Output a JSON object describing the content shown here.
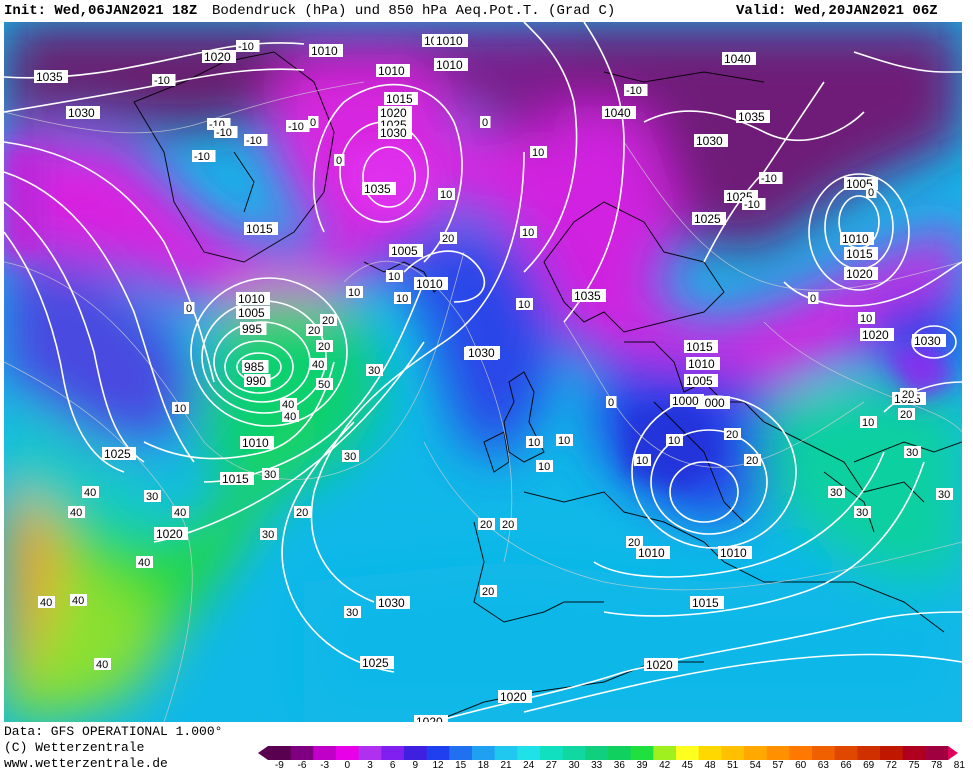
{
  "header": {
    "init_label": "Init: Wed,06JAN2021 18Z",
    "product_title": "Bodendruck (hPa) und 850 hPa Aeq.Pot.T. (Grad C)",
    "valid_label": "Valid: Wed,20JAN2021 06Z"
  },
  "footer": {
    "data_source": "Data: GFS OPERATIONAL 1.000°",
    "copyright": "(C) Wetterzentrale",
    "website": "www.wetterzentrale.de"
  },
  "colorbar": {
    "tick_labels": [
      "-9",
      "-6",
      "-3",
      "0",
      "3",
      "6",
      "9",
      "12",
      "15",
      "18",
      "21",
      "24",
      "27",
      "30",
      "33",
      "36",
      "39",
      "42",
      "45",
      "48",
      "51",
      "54",
      "57",
      "60",
      "63",
      "66",
      "69",
      "72",
      "75",
      "78",
      "81"
    ],
    "colors": [
      "#5a0050",
      "#7e0080",
      "#c000c8",
      "#e800e8",
      "#b030f0",
      "#8020f0",
      "#4020e0",
      "#2040f0",
      "#2070f0",
      "#20a0f0",
      "#20c8f0",
      "#20e0e8",
      "#10e0c0",
      "#10d8a0",
      "#10d080",
      "#10d060",
      "#20e040",
      "#a0f020",
      "#ffff20",
      "#ffd800",
      "#ffc000",
      "#ffa800",
      "#ff9000",
      "#ff7800",
      "#f06000",
      "#e04800",
      "#d03000",
      "#c01800",
      "#b00020",
      "#a00040"
    ]
  },
  "map": {
    "pressure_labels": [
      {
        "t": "1035"
      },
      {
        "t": "1030"
      },
      {
        "t": "1020"
      },
      {
        "t": "1010"
      },
      {
        "t": "1010"
      },
      {
        "t": "1010"
      },
      {
        "t": "1010"
      },
      {
        "t": "1010"
      },
      {
        "t": "1015"
      },
      {
        "t": "1020"
      },
      {
        "t": "1025"
      },
      {
        "t": "1030"
      },
      {
        "t": "1035"
      },
      {
        "t": "1040"
      },
      {
        "t": "1040"
      },
      {
        "t": "1035"
      },
      {
        "t": "1030"
      },
      {
        "t": "1025"
      },
      {
        "t": "1025"
      },
      {
        "t": "1005"
      },
      {
        "t": "1010"
      },
      {
        "t": "1015"
      },
      {
        "t": "1020"
      },
      {
        "t": "1015"
      },
      {
        "t": "1015"
      },
      {
        "t": "1005"
      },
      {
        "t": "1010"
      },
      {
        "t": "1010"
      },
      {
        "t": "1005"
      },
      {
        "t": "1000"
      },
      {
        "t": "995"
      },
      {
        "t": "985"
      },
      {
        "t": "990"
      },
      {
        "t": "1010"
      },
      {
        "t": "1025"
      },
      {
        "t": "1015"
      },
      {
        "t": "1020"
      },
      {
        "t": "1030"
      },
      {
        "t": "1035"
      },
      {
        "t": "1030"
      },
      {
        "t": "1015"
      },
      {
        "t": "1010"
      },
      {
        "t": "1005"
      },
      {
        "t": "1000"
      },
      {
        "t": "1020"
      },
      {
        "t": "1030"
      },
      {
        "t": "1025"
      },
      {
        "t": "1010"
      },
      {
        "t": "1010"
      },
      {
        "t": "1015"
      },
      {
        "t": "1030"
      },
      {
        "t": "1025"
      },
      {
        "t": "1020"
      },
      {
        "t": "1020"
      },
      {
        "t": "1020"
      },
      {
        "t": "1015"
      },
      {
        "t": "1020"
      }
    ],
    "theta_labels": [
      "-10",
      "-10",
      "-10",
      "-10",
      "-10",
      "-10",
      "-10",
      "-10",
      "0",
      "0",
      "0",
      "10",
      "10",
      "10",
      "10",
      "20",
      "20",
      "10",
      "10",
      "0",
      "-10",
      "-10",
      "0",
      "0",
      "10",
      "10",
      "10",
      "20",
      "20",
      "30",
      "40",
      "50",
      "40",
      "30",
      "20",
      "40",
      "30",
      "20",
      "30",
      "30",
      "20",
      "40",
      "40",
      "30",
      "40",
      "40",
      "40",
      "40",
      "40",
      "20",
      "10",
      "10",
      "10",
      "10",
      "10",
      "20",
      "20",
      "30",
      "30",
      "30",
      "30",
      "20",
      "20",
      "10",
      "20",
      "0"
    ]
  }
}
